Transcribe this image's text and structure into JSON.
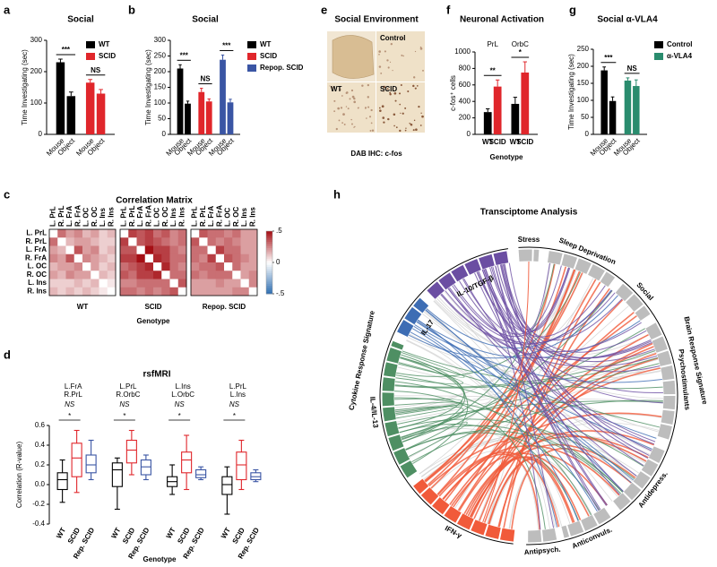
{
  "chart_data": [
    {
      "type": "bar",
      "label": "a",
      "title": "Social",
      "y_label": "Time Investigating (sec)",
      "categories": [
        "Mouse",
        "Object"
      ],
      "series": [
        {
          "name": "WT",
          "color": "#000000",
          "values": [
            230,
            122
          ],
          "errors": [
            10,
            13
          ]
        },
        {
          "name": "SCID",
          "color": "#e0262b",
          "values": [
            165,
            130
          ],
          "errors": [
            10,
            13
          ]
        }
      ],
      "ylim": [
        0,
        300
      ],
      "yticks": [
        0,
        100,
        200,
        300
      ],
      "annotations": [
        "***",
        "NS"
      ],
      "legend": true
    },
    {
      "type": "bar",
      "label": "b",
      "title": "Social",
      "y_label": "Time Investigating (sec)",
      "categories": [
        "Mouse",
        "Object"
      ],
      "series": [
        {
          "name": "WT",
          "color": "#000000",
          "values": [
            210,
            98
          ],
          "errors": [
            12,
            8
          ]
        },
        {
          "name": "SCID",
          "color": "#e0262b",
          "values": [
            135,
            105
          ],
          "errors": [
            12,
            8
          ]
        },
        {
          "name": "Repop. SCID",
          "color": "#3a55a4",
          "values": [
            238,
            102
          ],
          "errors": [
            15,
            10
          ]
        }
      ],
      "ylim": [
        0,
        300
      ],
      "yticks": [
        0,
        50,
        100,
        150,
        200,
        250,
        300
      ],
      "annotations": [
        "***",
        "NS",
        "***"
      ],
      "legend": true
    },
    {
      "type": "bar",
      "label": "f",
      "title": "Neuronal Activation",
      "y_label": "c-fos⁺ cells",
      "x_label": "Genotype",
      "categories": [
        "WT",
        "SCID"
      ],
      "colors": [
        "#000000",
        "#e0262b"
      ],
      "series": [
        {
          "name": "PrL",
          "values": [
            270,
            580
          ],
          "errors": [
            40,
            80
          ]
        },
        {
          "name": "OrbC",
          "values": [
            370,
            750
          ],
          "errors": [
            80,
            130
          ]
        }
      ],
      "ylim": [
        0,
        1000
      ],
      "yticks": [
        0,
        200,
        400,
        600,
        800,
        1000
      ],
      "annotations": [
        "**",
        "*"
      ],
      "legend": false
    },
    {
      "type": "bar",
      "label": "g",
      "title": "Social α-VLA4",
      "y_label": "Time Investigating (sec)",
      "categories": [
        "Mouse",
        "Object"
      ],
      "series": [
        {
          "name": "Control",
          "color": "#000000",
          "values": [
            188,
            98
          ],
          "errors": [
            10,
            12
          ]
        },
        {
          "name": "α-VLA4",
          "color": "#2a8c6e",
          "values": [
            158,
            142
          ],
          "errors": [
            8,
            18
          ]
        }
      ],
      "ylim": [
        0,
        250
      ],
      "yticks": [
        0,
        50,
        100,
        150,
        200,
        250
      ],
      "annotations": [
        "***",
        "NS"
      ],
      "legend": true
    },
    {
      "type": "heatmap",
      "label": "c",
      "title": "Correlation Matrix",
      "x_label": "Genotype",
      "labels": [
        "L. PrL",
        "R. PrL",
        "L. FrA",
        "R. FrA",
        "L. OC",
        "R. OC",
        "L. Ins",
        "R. Ins"
      ],
      "colors": [
        "#2b6cb0",
        "#ffffff",
        "#a50f15"
      ],
      "zlim": [
        -0.5,
        0.5
      ],
      "zticks": [
        {
          "value": 0.5,
          "label": ".5"
        },
        0,
        {
          "value": -0.5,
          "label": "-.5"
        }
      ],
      "panels": [
        {
          "name": "WT",
          "values": [
            [
              null,
              0.3,
              0.2,
              0.25,
              0.15,
              0.2,
              0.1,
              0.15
            ],
            [
              0.3,
              null,
              0.15,
              0.2,
              0.2,
              0.15,
              0.1,
              0.1
            ],
            [
              0.2,
              0.15,
              null,
              0.35,
              0.2,
              0.25,
              0.1,
              0.15
            ],
            [
              0.25,
              0.2,
              0.35,
              null,
              0.25,
              0.2,
              0.15,
              0.1
            ],
            [
              0.15,
              0.2,
              0.2,
              0.25,
              null,
              0.2,
              0.1,
              0.15
            ],
            [
              0.2,
              0.15,
              0.25,
              0.2,
              0.2,
              null,
              0.15,
              0.1
            ],
            [
              0.1,
              0.1,
              0.1,
              0.15,
              0.1,
              0.15,
              null,
              0.05
            ],
            [
              0.15,
              0.1,
              0.15,
              0.1,
              0.15,
              0.1,
              0.05,
              null
            ]
          ]
        },
        {
          "name": "SCID",
          "values": [
            [
              null,
              0.4,
              0.35,
              0.4,
              0.3,
              0.35,
              0.25,
              0.3
            ],
            [
              0.4,
              null,
              0.35,
              0.4,
              0.35,
              0.3,
              0.25,
              0.3
            ],
            [
              0.35,
              0.35,
              null,
              0.5,
              0.4,
              0.4,
              0.3,
              0.25
            ],
            [
              0.4,
              0.4,
              0.5,
              null,
              0.45,
              0.4,
              0.3,
              0.3
            ],
            [
              0.3,
              0.35,
              0.4,
              0.45,
              null,
              0.45,
              0.3,
              0.25
            ],
            [
              0.35,
              0.3,
              0.4,
              0.4,
              0.45,
              null,
              0.3,
              0.3
            ],
            [
              0.25,
              0.25,
              0.3,
              0.3,
              0.3,
              0.3,
              null,
              0.35
            ],
            [
              0.3,
              0.3,
              0.25,
              0.3,
              0.25,
              0.3,
              0.35,
              null
            ]
          ]
        },
        {
          "name": "Repop. SCID",
          "values": [
            [
              null,
              0.35,
              0.3,
              0.3,
              0.25,
              0.3,
              0.2,
              0.2
            ],
            [
              0.35,
              null,
              0.3,
              0.25,
              0.3,
              0.25,
              0.2,
              0.2
            ],
            [
              0.3,
              0.3,
              null,
              0.4,
              0.3,
              0.3,
              0.2,
              0.2
            ],
            [
              0.3,
              0.25,
              0.4,
              null,
              0.35,
              0.3,
              0.25,
              0.2
            ],
            [
              0.25,
              0.3,
              0.3,
              0.35,
              null,
              0.3,
              0.2,
              0.2
            ],
            [
              0.3,
              0.25,
              0.3,
              0.3,
              0.3,
              null,
              0.2,
              0.25
            ],
            [
              0.2,
              0.2,
              0.2,
              0.25,
              0.2,
              0.2,
              null,
              0.25
            ],
            [
              0.2,
              0.2,
              0.2,
              0.2,
              0.2,
              0.25,
              0.25,
              null
            ]
          ]
        }
      ]
    },
    {
      "type": "box",
      "label": "d",
      "title": "rsfMRI",
      "y_label": "Correlation (R-value)",
      "x_label": "Genotype",
      "categories": [
        [
          "L.FrA",
          "R.PrL"
        ],
        [
          "L.PrL",
          "R.OrbC"
        ],
        [
          "L.Ins",
          "L.OrbC"
        ],
        [
          "L.PrL",
          "L.Ins"
        ]
      ],
      "annotations": [
        [
          "NS",
          "*"
        ],
        [
          "NS",
          "*"
        ],
        [
          "NS",
          "*"
        ],
        [
          "NS",
          "*"
        ]
      ],
      "series": [
        {
          "name": "WT",
          "color": "#000000",
          "values": [
            [
              -0.18,
              -0.05,
              0.05,
              0.12,
              0.25
            ],
            [
              -0.25,
              -0.02,
              0.15,
              0.22,
              0.27
            ],
            [
              -0.1,
              -0.02,
              0.03,
              0.08,
              0.2
            ],
            [
              -0.3,
              -0.1,
              0.0,
              0.08,
              0.18
            ]
          ]
        },
        {
          "name": "SCID",
          "color": "#e0262b",
          "values": [
            [
              -0.08,
              0.08,
              0.27,
              0.42,
              0.55
            ],
            [
              0.1,
              0.22,
              0.35,
              0.45,
              0.55
            ],
            [
              -0.05,
              0.12,
              0.25,
              0.33,
              0.5
            ],
            [
              -0.05,
              0.05,
              0.2,
              0.33,
              0.45
            ]
          ]
        },
        {
          "name": "Rep. SCID",
          "color": "#3a55a4",
          "values": [
            [
              0.05,
              0.12,
              0.2,
              0.3,
              0.45
            ],
            [
              0.05,
              0.1,
              0.18,
              0.25,
              0.3
            ],
            [
              0.05,
              0.07,
              0.1,
              0.15,
              0.18
            ],
            [
              0.03,
              0.05,
              0.08,
              0.12,
              0.15
            ]
          ]
        }
      ],
      "ylim": [
        -0.4,
        0.6
      ],
      "yticks": [
        -0.4,
        -0.2,
        {
          "value": 0,
          "label": "0.0"
        },
        0.2,
        0.4,
        0.6
      ]
    }
  ],
  "figure_panels": {
    "e": {
      "label": "e",
      "title": "Social Environment",
      "image_labels": [
        "Control",
        "WT",
        "SCID"
      ],
      "caption": "DAB IHC: c-fos"
    },
    "h": {
      "label": "h",
      "title": "Transciptome Analysis",
      "brain_label": "Brain Response Signature",
      "cytokine_label": "Cytokine Response Signature",
      "brain_segments": [
        "Stress",
        "Sleep Deprivation",
        "Social",
        "Psychostimulants",
        "Antidepress.",
        "Anticonvuls.",
        "Antipsych."
      ],
      "cytokine_segments": [
        "IFN-γ",
        "IL-4/IL-13",
        "IL-17",
        "IL-10/TGF-β"
      ]
    }
  }
}
